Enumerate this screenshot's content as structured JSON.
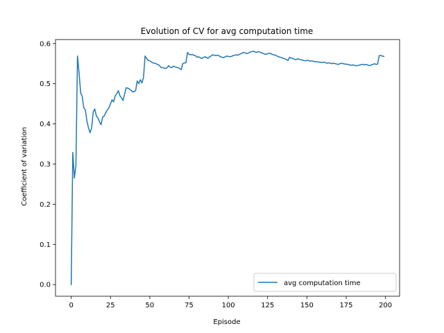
{
  "chart_data": {
    "type": "line",
    "title": "Evolution of CV for avg computation time",
    "xlabel": "Episode",
    "ylabel": "Coefficient of variation",
    "xlim": [
      -10,
      209
    ],
    "ylim": [
      -0.029,
      0.61
    ],
    "xticks": [
      0,
      25,
      50,
      75,
      100,
      125,
      150,
      175,
      200
    ],
    "yticks": [
      0.0,
      0.1,
      0.2,
      0.3,
      0.4,
      0.5,
      0.6
    ],
    "grid": false,
    "legend": "lower-right",
    "series": [
      {
        "name": "avg computation time",
        "color": "#1f77b4",
        "x": [
          0,
          1,
          2,
          3,
          4,
          5,
          6,
          7,
          8,
          9,
          10,
          11,
          12,
          13,
          14,
          15,
          16,
          17,
          18,
          19,
          20,
          21,
          22,
          23,
          24,
          25,
          26,
          27,
          28,
          29,
          30,
          31,
          32,
          33,
          34,
          35,
          36,
          37,
          38,
          39,
          40,
          41,
          42,
          43,
          44,
          45,
          46,
          47,
          48,
          49,
          50,
          51,
          52,
          53,
          54,
          55,
          56,
          57,
          58,
          59,
          60,
          61,
          62,
          63,
          64,
          65,
          66,
          67,
          68,
          69,
          70,
          71,
          72,
          73,
          74,
          75,
          76,
          77,
          78,
          79,
          80,
          81,
          82,
          83,
          84,
          85,
          86,
          87,
          88,
          89,
          90,
          91,
          92,
          93,
          94,
          95,
          96,
          97,
          98,
          99,
          100,
          101,
          102,
          103,
          104,
          105,
          106,
          107,
          108,
          109,
          110,
          111,
          112,
          113,
          114,
          115,
          116,
          117,
          118,
          119,
          120,
          121,
          122,
          123,
          124,
          125,
          126,
          127,
          128,
          129,
          130,
          131,
          132,
          133,
          134,
          135,
          136,
          137,
          138,
          139,
          140,
          141,
          142,
          143,
          144,
          145,
          146,
          147,
          148,
          149,
          150,
          151,
          152,
          153,
          154,
          155,
          156,
          157,
          158,
          159,
          160,
          161,
          162,
          163,
          164,
          165,
          166,
          167,
          168,
          169,
          170,
          171,
          172,
          173,
          174,
          175,
          176,
          177,
          178,
          179,
          180,
          181,
          182,
          183,
          184,
          185,
          186,
          187,
          188,
          189,
          190,
          191,
          192,
          193,
          194,
          195,
          196,
          197,
          198,
          199
        ],
        "y": [
          0.0,
          0.329,
          0.265,
          0.297,
          0.569,
          0.527,
          0.478,
          0.468,
          0.44,
          0.435,
          0.407,
          0.39,
          0.378,
          0.39,
          0.43,
          0.437,
          0.42,
          0.415,
          0.405,
          0.398,
          0.417,
          0.42,
          0.428,
          0.435,
          0.44,
          0.45,
          0.46,
          0.455,
          0.47,
          0.475,
          0.483,
          0.47,
          0.465,
          0.458,
          0.475,
          0.49,
          0.489,
          0.487,
          0.484,
          0.48,
          0.48,
          0.483,
          0.507,
          0.5,
          0.51,
          0.502,
          0.515,
          0.569,
          0.563,
          0.558,
          0.557,
          0.554,
          0.552,
          0.551,
          0.55,
          0.548,
          0.546,
          0.541,
          0.54,
          0.539,
          0.538,
          0.54,
          0.545,
          0.541,
          0.54,
          0.544,
          0.542,
          0.541,
          0.54,
          0.538,
          0.535,
          0.55,
          0.552,
          0.552,
          0.578,
          0.573,
          0.572,
          0.573,
          0.571,
          0.57,
          0.566,
          0.567,
          0.565,
          0.563,
          0.565,
          0.567,
          0.566,
          0.563,
          0.567,
          0.569,
          0.572,
          0.571,
          0.57,
          0.571,
          0.57,
          0.567,
          0.566,
          0.565,
          0.567,
          0.569,
          0.568,
          0.567,
          0.568,
          0.57,
          0.571,
          0.572,
          0.571,
          0.573,
          0.575,
          0.577,
          0.578,
          0.576,
          0.575,
          0.577,
          0.579,
          0.58,
          0.581,
          0.579,
          0.578,
          0.58,
          0.579,
          0.577,
          0.576,
          0.574,
          0.573,
          0.575,
          0.576,
          0.575,
          0.573,
          0.572,
          0.571,
          0.569,
          0.567,
          0.566,
          0.565,
          0.563,
          0.562,
          0.56,
          0.558,
          0.566,
          0.564,
          0.563,
          0.561,
          0.56,
          0.562,
          0.561,
          0.56,
          0.559,
          0.558,
          0.557,
          0.558,
          0.558,
          0.556,
          0.557,
          0.556,
          0.555,
          0.555,
          0.554,
          0.554,
          0.553,
          0.553,
          0.554,
          0.552,
          0.551,
          0.552,
          0.551,
          0.55,
          0.551,
          0.55,
          0.549,
          0.548,
          0.55,
          0.551,
          0.55,
          0.549,
          0.549,
          0.548,
          0.547,
          0.546,
          0.547,
          0.546,
          0.545,
          0.545,
          0.546,
          0.547,
          0.548,
          0.548,
          0.547,
          0.548,
          0.546,
          0.545,
          0.547,
          0.548,
          0.55,
          0.548,
          0.549,
          0.57,
          0.57,
          0.569,
          0.568
        ]
      }
    ]
  }
}
